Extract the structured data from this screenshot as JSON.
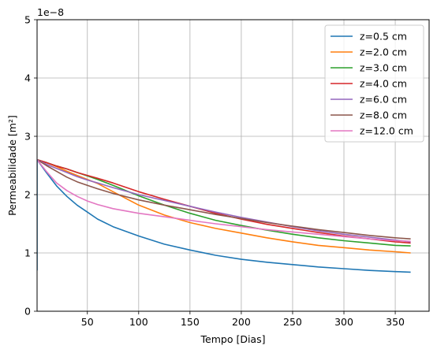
{
  "chart_data": {
    "type": "line",
    "title": "",
    "xlabel": "Tempo [Dias]",
    "ylabel": "Permeabilidade [m²]",
    "y_scale_label": "1e−8",
    "xlim": [
      1,
      383
    ],
    "ylim": [
      0,
      5
    ],
    "y_multiplier": 1e-08,
    "xticks": [
      50,
      100,
      150,
      200,
      250,
      300,
      350
    ],
    "yticks": [
      0,
      1,
      2,
      3,
      4,
      5
    ],
    "grid": true,
    "legend_position": "top-right",
    "x": [
      1,
      10,
      20,
      30,
      40,
      50,
      60,
      75,
      100,
      125,
      150,
      175,
      200,
      225,
      250,
      275,
      300,
      325,
      350,
      365
    ],
    "series": [
      {
        "name": "z=0.5 cm",
        "color": "#1f77b4",
        "values": [
          2.6,
          2.38,
          2.15,
          1.97,
          1.82,
          1.7,
          1.58,
          1.45,
          1.29,
          1.15,
          1.05,
          0.96,
          0.89,
          0.84,
          0.8,
          0.76,
          0.73,
          0.7,
          0.68,
          0.67
        ]
      },
      {
        "name": "z=2.0 cm",
        "color": "#ff7f0e",
        "values": [
          2.6,
          2.55,
          2.48,
          2.4,
          2.33,
          2.26,
          2.19,
          2.05,
          1.82,
          1.65,
          1.52,
          1.42,
          1.34,
          1.26,
          1.19,
          1.13,
          1.09,
          1.05,
          1.02,
          1.0
        ]
      },
      {
        "name": "z=3.0 cm",
        "color": "#2ca02c",
        "values": [
          2.6,
          2.55,
          2.49,
          2.44,
          2.38,
          2.32,
          2.26,
          2.16,
          1.98,
          1.82,
          1.68,
          1.56,
          1.47,
          1.39,
          1.32,
          1.26,
          1.21,
          1.17,
          1.13,
          1.12
        ]
      },
      {
        "name": "z=4.0 cm",
        "color": "#d62728",
        "values": [
          2.6,
          2.55,
          2.49,
          2.44,
          2.38,
          2.33,
          2.28,
          2.2,
          2.05,
          1.92,
          1.8,
          1.68,
          1.58,
          1.49,
          1.42,
          1.35,
          1.29,
          1.24,
          1.19,
          1.17
        ]
      },
      {
        "name": "z=6.0 cm",
        "color": "#9467bd",
        "values": [
          2.6,
          2.52,
          2.45,
          2.38,
          2.31,
          2.25,
          2.2,
          2.12,
          2.0,
          1.9,
          1.8,
          1.7,
          1.61,
          1.53,
          1.45,
          1.38,
          1.32,
          1.27,
          1.22,
          1.19
        ]
      },
      {
        "name": "z=8.0 cm",
        "color": "#8c564b",
        "values": [
          2.6,
          2.5,
          2.4,
          2.3,
          2.22,
          2.16,
          2.1,
          2.02,
          1.91,
          1.82,
          1.74,
          1.66,
          1.59,
          1.52,
          1.46,
          1.4,
          1.35,
          1.3,
          1.26,
          1.24
        ]
      },
      {
        "name": "z=12.0 cm",
        "color": "#e377c2",
        "values": [
          2.6,
          2.4,
          2.2,
          2.07,
          1.97,
          1.89,
          1.83,
          1.76,
          1.68,
          1.62,
          1.56,
          1.5,
          1.45,
          1.4,
          1.36,
          1.32,
          1.28,
          1.24,
          1.21,
          1.2
        ]
      }
    ]
  }
}
